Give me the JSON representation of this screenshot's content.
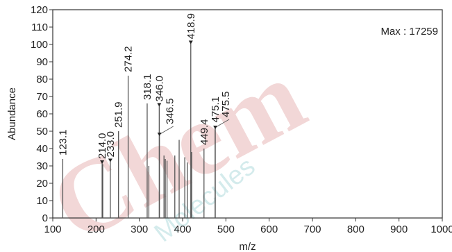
{
  "chart_data": {
    "type": "bar",
    "xlabel": "m/z",
    "ylabel": "Abundance",
    "xlim": [
      100,
      1000
    ],
    "ylim": [
      0,
      120
    ],
    "xticks": [
      100,
      200,
      300,
      400,
      500,
      600,
      700,
      800,
      900,
      1000
    ],
    "yticks": [
      0,
      10,
      20,
      30,
      40,
      50,
      60,
      70,
      80,
      90,
      100,
      110,
      120
    ],
    "annotation": "Max : 17259",
    "peaks": [
      {
        "x": 123.1,
        "y": 34
      },
      {
        "x": 214.0,
        "y": 32
      },
      {
        "x": 215.5,
        "y": 31
      },
      {
        "x": 233.0,
        "y": 33
      },
      {
        "x": 251.9,
        "y": 50
      },
      {
        "x": 274.2,
        "y": 82
      },
      {
        "x": 318.1,
        "y": 66
      },
      {
        "x": 322.0,
        "y": 30
      },
      {
        "x": 346.0,
        "y": 65
      },
      {
        "x": 346.5,
        "y": 48
      },
      {
        "x": 357.0,
        "y": 36
      },
      {
        "x": 360.0,
        "y": 34
      },
      {
        "x": 364.0,
        "y": 33
      },
      {
        "x": 382.0,
        "y": 36
      },
      {
        "x": 392.0,
        "y": 45
      },
      {
        "x": 405.0,
        "y": 35
      },
      {
        "x": 411.0,
        "y": 32
      },
      {
        "x": 418.9,
        "y": 101
      },
      {
        "x": 421.0,
        "y": 38
      },
      {
        "x": 449.4,
        "y": 40
      },
      {
        "x": 475.1,
        "y": 53
      },
      {
        "x": 475.5,
        "y": 52
      }
    ],
    "labels": [
      {
        "text": "123.1",
        "x": 123.1,
        "y": 34
      },
      {
        "text": "214.0",
        "x": 214.0,
        "y": 32,
        "marker": true
      },
      {
        "text": "233.0",
        "x": 233.0,
        "y": 33,
        "marker": true
      },
      {
        "text": "251.9",
        "x": 251.9,
        "y": 50
      },
      {
        "text": "274.2",
        "x": 274.2,
        "y": 82
      },
      {
        "text": "318.1",
        "x": 318.1,
        "y": 66
      },
      {
        "text": "346.0",
        "x": 346.0,
        "y": 65,
        "marker": true
      },
      {
        "text": "346.5",
        "x": 346.5,
        "y": 48,
        "marker": true,
        "leader": true
      },
      {
        "text": "418.9",
        "x": 418.9,
        "y": 101,
        "marker": true
      },
      {
        "text": "449.4",
        "x": 449.4,
        "y": 40
      },
      {
        "text": "475.1",
        "x": 475.1,
        "y": 53
      },
      {
        "text": "475.5",
        "x": 475.5,
        "y": 52,
        "marker": true,
        "leader": true
      }
    ]
  },
  "watermark": {
    "text_big": "Chem",
    "text_small": "Molecules"
  },
  "colors": {
    "axis": "#333333",
    "peak": "#555555",
    "watermark_red": "#e8b8b8",
    "watermark_teal": "#b9dfe0"
  }
}
